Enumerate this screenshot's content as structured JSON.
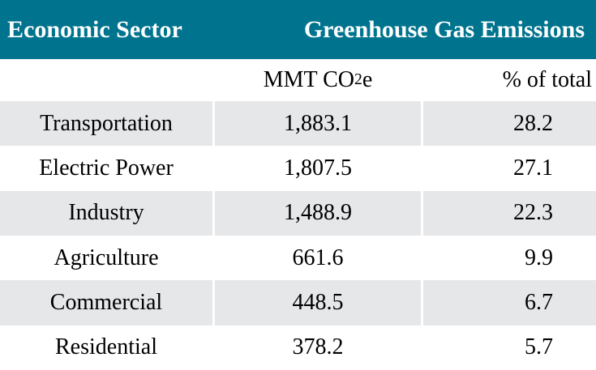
{
  "table": {
    "header": {
      "col1": "Economic Sector",
      "col2": "Greenhouse Gas Emissions"
    },
    "subheader": {
      "mmt_prefix": "MMT CO",
      "mmt_sub": "2",
      "mmt_suffix": "e",
      "pct": "% of total"
    },
    "rows": [
      {
        "sector": "Transportation",
        "mmt": "1,883.1",
        "pct": "28.2"
      },
      {
        "sector": "Electric Power",
        "mmt": "1,807.5",
        "pct": "27.1"
      },
      {
        "sector": "Industry",
        "mmt": "1,488.9",
        "pct": "22.3"
      },
      {
        "sector": "Agriculture",
        "mmt": "661.6",
        "pct": "9.9"
      },
      {
        "sector": "Commercial",
        "mmt": "448.5",
        "pct": "6.7"
      },
      {
        "sector": "Residential",
        "mmt": "378.2",
        "pct": "5.7"
      }
    ],
    "colors": {
      "header_bg": "#00748E",
      "header_text": "#FFFFFF",
      "row_alt_bg": "#E6E7E9",
      "row_bg": "#FFFFFF",
      "body_text": "#000000"
    }
  },
  "chart_data": {
    "type": "table",
    "title": "Greenhouse Gas Emissions by Economic Sector",
    "columns": [
      "Economic Sector",
      "MMT CO2e",
      "% of total"
    ],
    "rows": [
      [
        "Transportation",
        1883.1,
        28.2
      ],
      [
        "Electric Power",
        1807.5,
        27.1
      ],
      [
        "Industry",
        1488.9,
        22.3
      ],
      [
        "Agriculture",
        661.6,
        9.9
      ],
      [
        "Commercial",
        448.5,
        6.7
      ],
      [
        "Residential",
        378.2,
        5.7
      ]
    ],
    "layout": {
      "header_style": "teal band with white bold serif text",
      "row_striping": "alternating light-gray / white starting gray",
      "mmt_alignment": "center",
      "pct_alignment": "right"
    }
  }
}
